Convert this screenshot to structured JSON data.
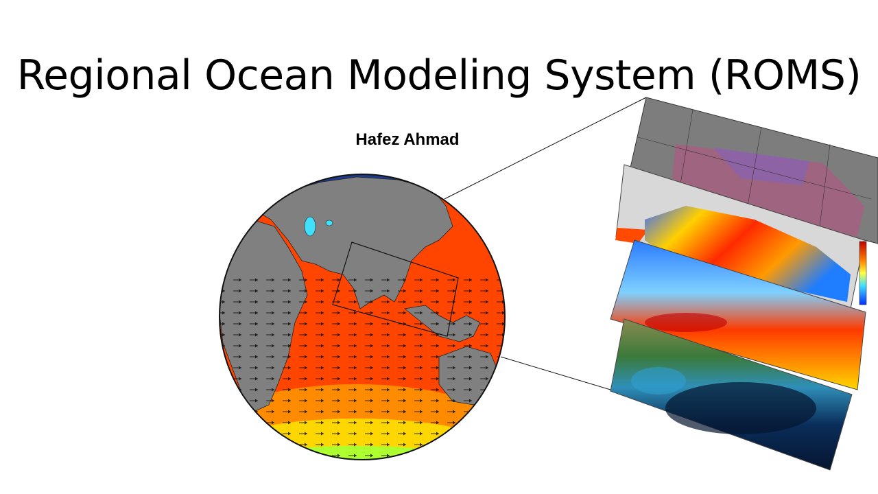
{
  "slide": {
    "title": "Regional Ocean Modeling System (ROMS)",
    "author": "Hafez Ahmad"
  },
  "globe": {
    "ocean_color": "#ff4500",
    "land_color": "#808080",
    "accent_colors": [
      "#ff8c00",
      "#ffd700",
      "#adff2f",
      "#1e3a8a"
    ]
  },
  "layers": [
    {
      "name": "grid-layer",
      "base": "#9a7ca0"
    },
    {
      "name": "sst-layer",
      "base": "#ff8c00"
    },
    {
      "name": "current-layer",
      "base": "#ff5a00"
    },
    {
      "name": "bathymetry-layer",
      "base": "#0b3b6f"
    }
  ]
}
